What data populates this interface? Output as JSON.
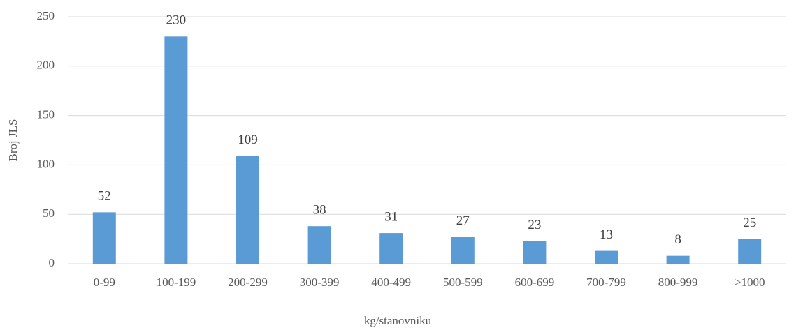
{
  "chart_data": {
    "type": "bar",
    "xlabel": "kg/stanovniku",
    "ylabel": "Broj JLS",
    "categories": [
      "0-99",
      "100-199",
      "200-299",
      "300-399",
      "400-499",
      "500-599",
      "600-699",
      "700-799",
      "800-999",
      ">1000"
    ],
    "values": [
      52,
      230,
      109,
      38,
      31,
      27,
      23,
      13,
      8,
      25
    ],
    "color": "#5b9bd5",
    "ylim": [
      0,
      250
    ],
    "yticks": [
      0,
      50,
      100,
      150,
      200,
      250
    ],
    "grid": true
  }
}
